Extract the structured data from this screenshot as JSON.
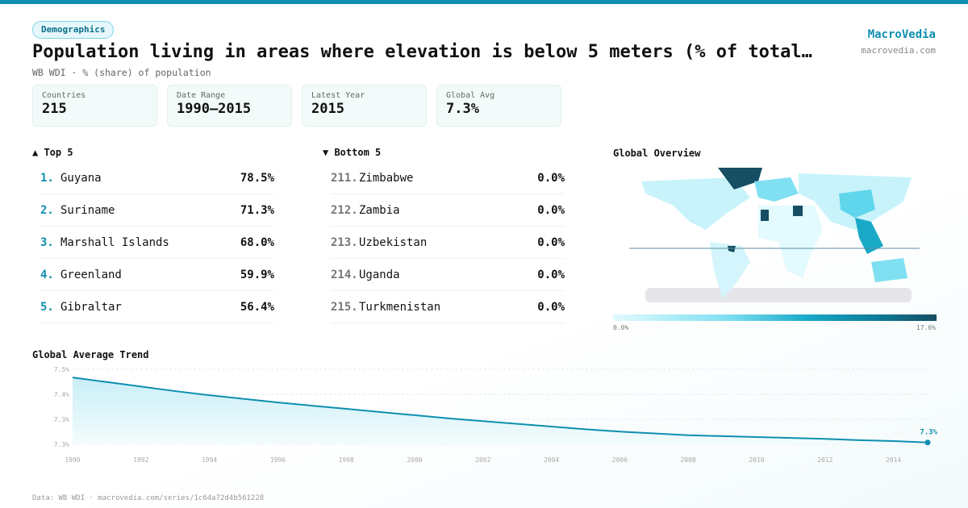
{
  "header": {
    "badge": "Demographics",
    "title": "Population living in areas where elevation is below 5 meters (% of total…",
    "subtitle": "WB WDI · % (share) of population",
    "brand": "MacroVedia",
    "brand_url": "macrovedia.com"
  },
  "stats": [
    {
      "label": "Countries",
      "value": "215"
    },
    {
      "label": "Date Range",
      "value": "1990–2015"
    },
    {
      "label": "Latest Year",
      "value": "2015"
    },
    {
      "label": "Global Avg",
      "value": "7.3%"
    }
  ],
  "top5": {
    "title": "▲ Top 5",
    "items": [
      {
        "rank": "1.",
        "name": "Guyana",
        "value": "78.5%"
      },
      {
        "rank": "2.",
        "name": "Suriname",
        "value": "71.3%"
      },
      {
        "rank": "3.",
        "name": "Marshall Islands",
        "value": "68.0%"
      },
      {
        "rank": "4.",
        "name": "Greenland",
        "value": "59.9%"
      },
      {
        "rank": "5.",
        "name": "Gibraltar",
        "value": "56.4%"
      }
    ]
  },
  "bottom5": {
    "title": "▼ Bottom 5",
    "items": [
      {
        "rank": "211.",
        "name": "Zimbabwe",
        "value": "0.0%"
      },
      {
        "rank": "212.",
        "name": "Zambia",
        "value": "0.0%"
      },
      {
        "rank": "213.",
        "name": "Uzbekistan",
        "value": "0.0%"
      },
      {
        "rank": "214.",
        "name": "Uganda",
        "value": "0.0%"
      },
      {
        "rank": "215.",
        "name": "Turkmenistan",
        "value": "0.0%"
      }
    ]
  },
  "map": {
    "title": "Global Overview",
    "legend_min": "0.0%",
    "legend_max": "17.6%",
    "colors": [
      "#e3fafe",
      "#7fe0f2",
      "#19a9c7",
      "#164e63"
    ]
  },
  "chart_data": {
    "type": "area",
    "title": "Global Average Trend",
    "x": [
      1990,
      1991,
      1992,
      1993,
      1994,
      1995,
      1996,
      1997,
      1998,
      1999,
      2000,
      2001,
      2002,
      2003,
      2004,
      2005,
      2006,
      2007,
      2008,
      2009,
      2010,
      2011,
      2012,
      2013,
      2014,
      2015
    ],
    "values": [
      7.437,
      7.427,
      7.417,
      7.407,
      7.398,
      7.39,
      7.382,
      7.375,
      7.368,
      7.361,
      7.354,
      7.347,
      7.341,
      7.335,
      7.329,
      7.323,
      7.318,
      7.314,
      7.31,
      7.308,
      7.306,
      7.304,
      7.302,
      7.299,
      7.297,
      7.294
    ],
    "ylim": [
      7.29,
      7.455
    ],
    "y_tick_labels": [
      "7.5%",
      "7.4%",
      "7.3%",
      "7.3%"
    ],
    "x_tick_labels": [
      "1990",
      "1992",
      "1994",
      "1996",
      "1998",
      "2000",
      "2002",
      "2004",
      "2006",
      "2008",
      "2010",
      "2012",
      "2014"
    ],
    "end_label": "7.3%",
    "grid": true,
    "color": "#0e8fb0"
  },
  "footer": "Data: WB WDI · macrovedia.com/series/1c64a72d4b561228"
}
